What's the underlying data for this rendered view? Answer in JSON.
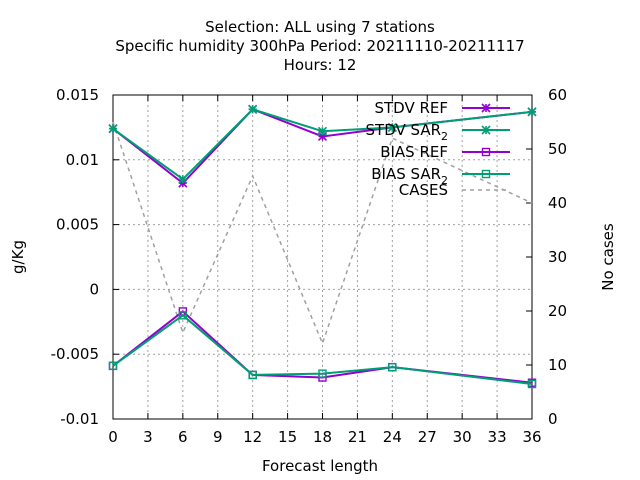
{
  "chart_data": {
    "type": "line",
    "title_lines": [
      "Selection: ALL using     7 stations",
      "Specific humidity 300hPa   Period: 20211110-20211117",
      "Hours:  12"
    ],
    "xlabel": "Forecast length",
    "ylabel": "g/Kg",
    "y2label": "No cases",
    "xlim": [
      0,
      36
    ],
    "ylim": [
      -0.01,
      0.015
    ],
    "y2lim": [
      0,
      60
    ],
    "x_ticks": [
      0,
      3,
      6,
      9,
      12,
      15,
      18,
      21,
      24,
      27,
      30,
      33,
      36
    ],
    "y_tick_labels": [
      "-0.01",
      "-0.005",
      "0",
      "0.005",
      "0.01",
      "0.015"
    ],
    "y_tick_values": [
      -0.01,
      -0.005,
      0,
      0.005,
      0.01,
      0.015
    ],
    "y2_ticks": [
      0,
      10,
      20,
      30,
      40,
      50,
      60
    ],
    "grid": true,
    "legend_position": "top-right",
    "x": [
      0,
      6,
      12,
      18,
      24,
      36
    ],
    "series": [
      {
        "name": "STDV REF",
        "sub": "",
        "axis": "y",
        "color": "#9400d3",
        "marker": "star",
        "dash": "",
        "values": [
          0.0124,
          0.0082,
          0.0139,
          0.0118,
          0.0125,
          0.0137
        ]
      },
      {
        "name": "STDV SAR",
        "sub": "2",
        "axis": "y",
        "color": "#009e73",
        "marker": "star",
        "dash": "",
        "values": [
          0.0124,
          0.0085,
          0.0139,
          0.0122,
          0.0125,
          0.0137
        ]
      },
      {
        "name": "BIAS REF",
        "sub": "",
        "axis": "y",
        "color": "#9400d3",
        "marker": "square",
        "dash": "",
        "values": [
          -0.0059,
          -0.0017,
          -0.0066,
          -0.0068,
          -0.006,
          -0.0072
        ]
      },
      {
        "name": "BIAS SAR",
        "sub": "2",
        "axis": "y",
        "color": "#009e73",
        "marker": "square",
        "dash": "",
        "values": [
          -0.0059,
          -0.002,
          -0.0066,
          -0.0065,
          -0.006,
          -0.0073
        ]
      },
      {
        "name": "CASES",
        "sub": "",
        "axis": "y2",
        "color": "#a0a0a0",
        "marker": "none",
        "dash": "4,4",
        "values": [
          55,
          16,
          45,
          14,
          52,
          40
        ]
      }
    ]
  }
}
